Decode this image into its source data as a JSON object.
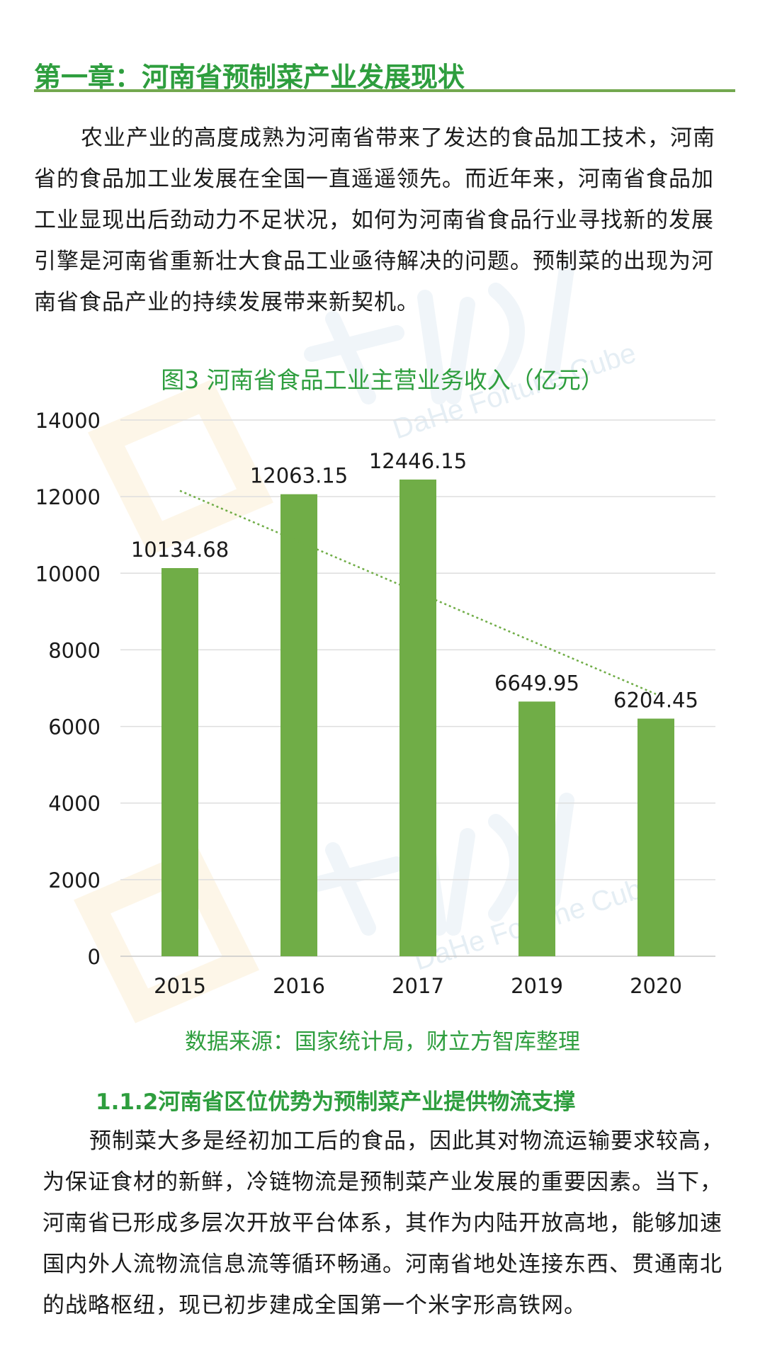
{
  "header": {
    "chapter_title": "第一章：河南省预制菜产业发展现状"
  },
  "intro_paragraph": "农业产业的高度成熟为河南省带来了发达的食品加工技术，河南省的食品加工业发展在全国一直遥遥领先。而近年来，河南省食品加工业显现出后劲动力不足状况，如何为河南省食品行业寻找新的发展引擎是河南省重新壮大食品工业亟待解决的问题。预制菜的出现为河南省食品产业的持续发展带来新契机。",
  "chart_data": {
    "type": "bar",
    "title": "图3 河南省食品工业主营业务收入（亿元）",
    "categories": [
      "2015",
      "2016",
      "2017",
      "2019",
      "2020"
    ],
    "values": [
      10134.68,
      12063.15,
      12446.15,
      6649.95,
      6204.45
    ],
    "value_labels": [
      "10134.68",
      "12063.15",
      "12446.15",
      "6649.95",
      "6204.45"
    ],
    "ylim": [
      0,
      14000
    ],
    "yticks": [
      0,
      2000,
      4000,
      6000,
      8000,
      10000,
      12000,
      14000
    ],
    "xlabel": "",
    "ylabel": "",
    "grid": true,
    "trendline": true,
    "legend": "none",
    "bar_color": "#70ad47",
    "trendline_color": "#70ad47"
  },
  "chart_source": "数据来源：国家统计局，财立方智库整理",
  "section": {
    "heading": "1.1.2河南省区位优势为预制菜产业提供物流支撑",
    "paragraph": "预制菜大多是经初加工后的食品，因此其对物流运输要求较高，为保证食材的新鲜，冷链物流是预制菜产业发展的重要因素。当下，河南省已形成多层次开放平台体系，其作为内陆开放高地，能够加速国内外人流物流信息流等循环畅通。河南省地处连接东西、贯通南北的战略枢纽，现已初步建成全国第一个米字形高铁网。"
  },
  "watermark": {
    "text_latin": "DaHe Fortune Cube",
    "color": "#d5e3ee",
    "logo_color": "#fbeed5"
  }
}
